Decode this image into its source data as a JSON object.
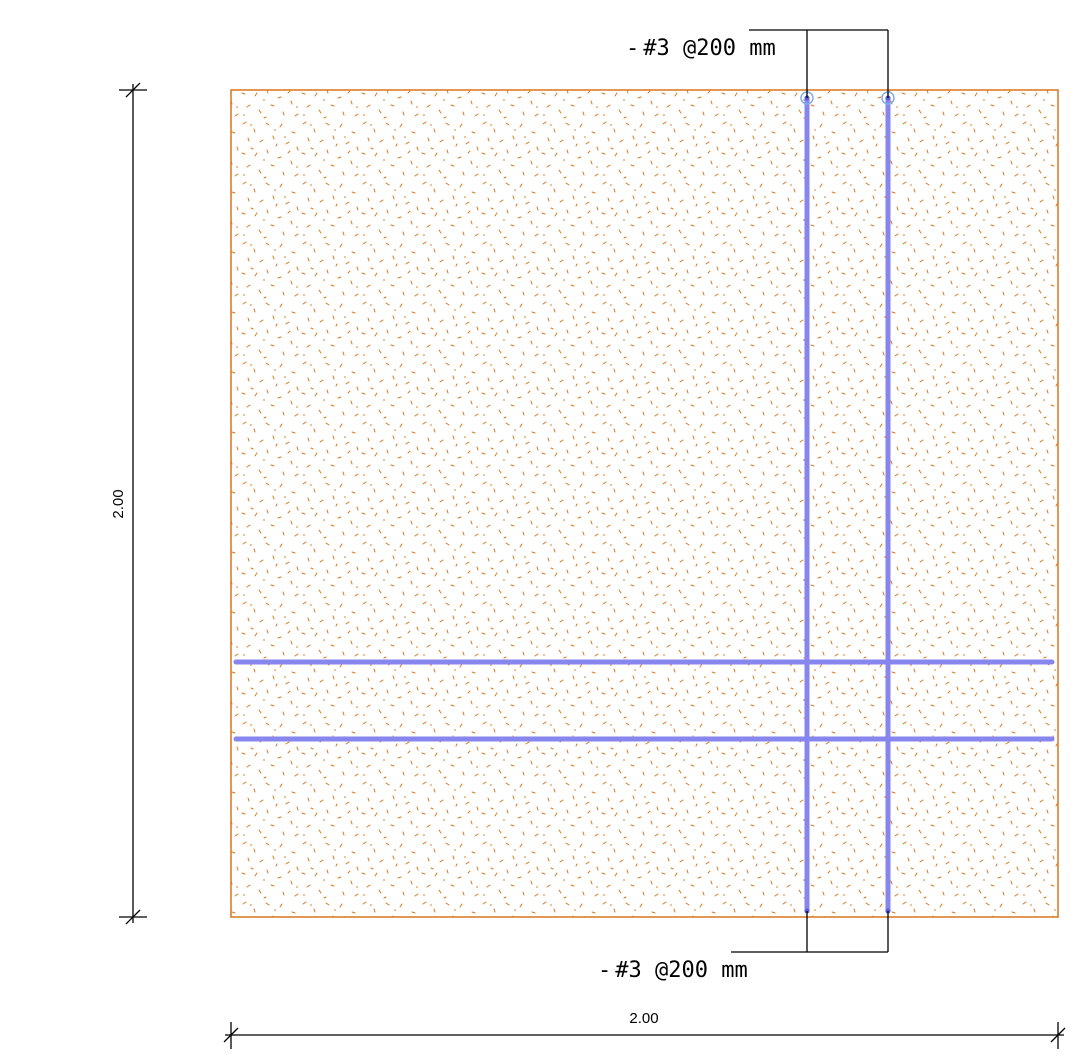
{
  "drawing": {
    "colors": {
      "background": "#ffffff",
      "concrete_outline": "#d9771c",
      "concrete_hatch": "#d9771c",
      "rebar": "#8686ee",
      "rebar_end_marker": "#7fb0ea",
      "lines": "#000000"
    },
    "callouts": {
      "top": {
        "prefix": "-",
        "label": "#3 @200 mm",
        "underlined_unit": "mm"
      },
      "bottom": {
        "prefix": "-",
        "label": "#3 @200 mm",
        "underlined_unit": "mm"
      }
    },
    "dimensions": {
      "horizontal": {
        "label": "2.00"
      },
      "vertical": {
        "label": "2.00"
      }
    },
    "hatch": {
      "pattern": "concrete-stipple"
    }
  }
}
